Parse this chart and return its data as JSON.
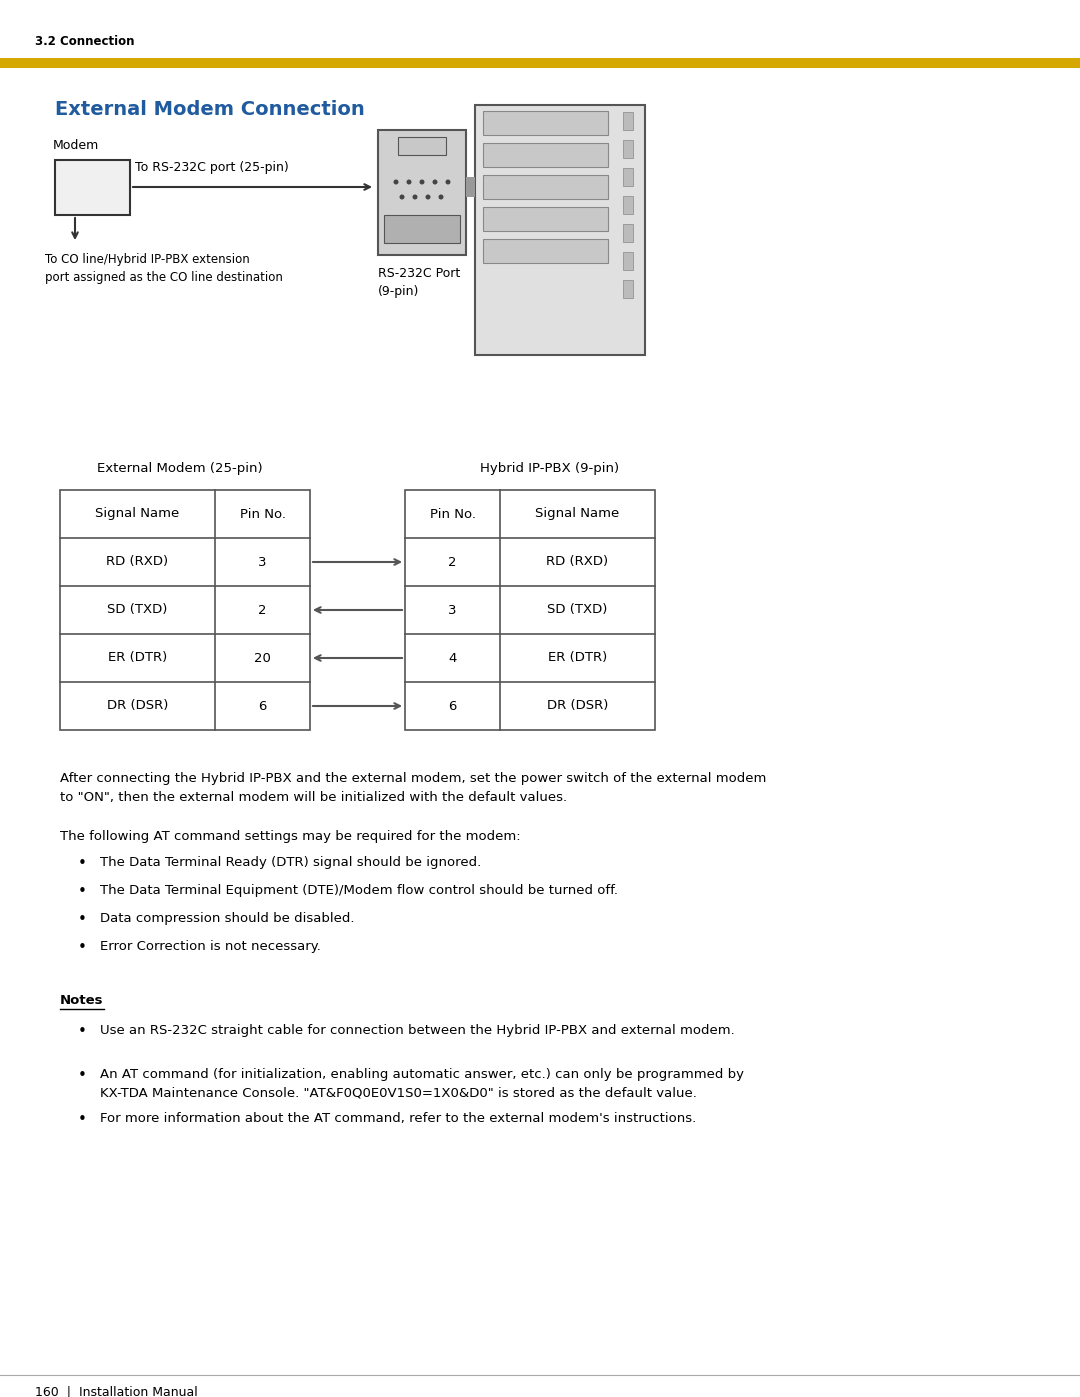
{
  "page_bg": "#ffffff",
  "header_text": "3.2 Connection",
  "header_bar_color": "#D4A800",
  "title": "External Modem Connection",
  "title_color": "#1F5B9E",
  "left_table_header": "External Modem (25-pin)",
  "right_table_header": "Hybrid IP-PBX (9-pin)",
  "left_table_cols": [
    "Signal Name",
    "Pin No."
  ],
  "right_table_cols": [
    "Pin No.",
    "Signal Name"
  ],
  "left_rows": [
    [
      "RD (RXD)",
      "3"
    ],
    [
      "SD (TXD)",
      "2"
    ],
    [
      "ER (DTR)",
      "20"
    ],
    [
      "DR (DSR)",
      "6"
    ]
  ],
  "right_rows": [
    [
      "2",
      "RD (RXD)"
    ],
    [
      "3",
      "SD (TXD)"
    ],
    [
      "4",
      "ER (DTR)"
    ],
    [
      "6",
      "DR (DSR)"
    ]
  ],
  "arrow_directions": [
    "right",
    "left",
    "left",
    "right"
  ],
  "modem_label": "Modem",
  "rs232c_label": "RS-232C Port\n(9-pin)",
  "cable_label": "To RS-232C port (25-pin)",
  "co_line_label": "To CO line/Hybrid IP-PBX extension\nport assigned as the CO line destination",
  "body_text1": "After connecting the Hybrid IP-PBX and the external modem, set the power switch of the external modem\nto \"ON\", then the external modem will be initialized with the default values.",
  "body_text2": "The following AT command settings may be required for the modem:",
  "bullets": [
    "The Data Terminal Ready (DTR) signal should be ignored.",
    "The Data Terminal Equipment (DTE)/Modem flow control should be turned off.",
    "Data compression should be disabled.",
    "Error Correction is not necessary."
  ],
  "notes_header": "Notes",
  "notes_bullets": [
    "Use an RS-232C straight cable for connection between the Hybrid IP-PBX and external modem.",
    "An AT command (for initialization, enabling automatic answer, etc.) can only be programmed by\nKX-TDA Maintenance Console. \"AT&F0Q0E0V1S0=1X0&D0\" is stored as the default value.",
    "For more information about the AT command, refer to the external modem's instructions."
  ],
  "footer_text": "160  |  Installation Manual",
  "table_line_color": "#555555",
  "arrow_color": "#555555"
}
